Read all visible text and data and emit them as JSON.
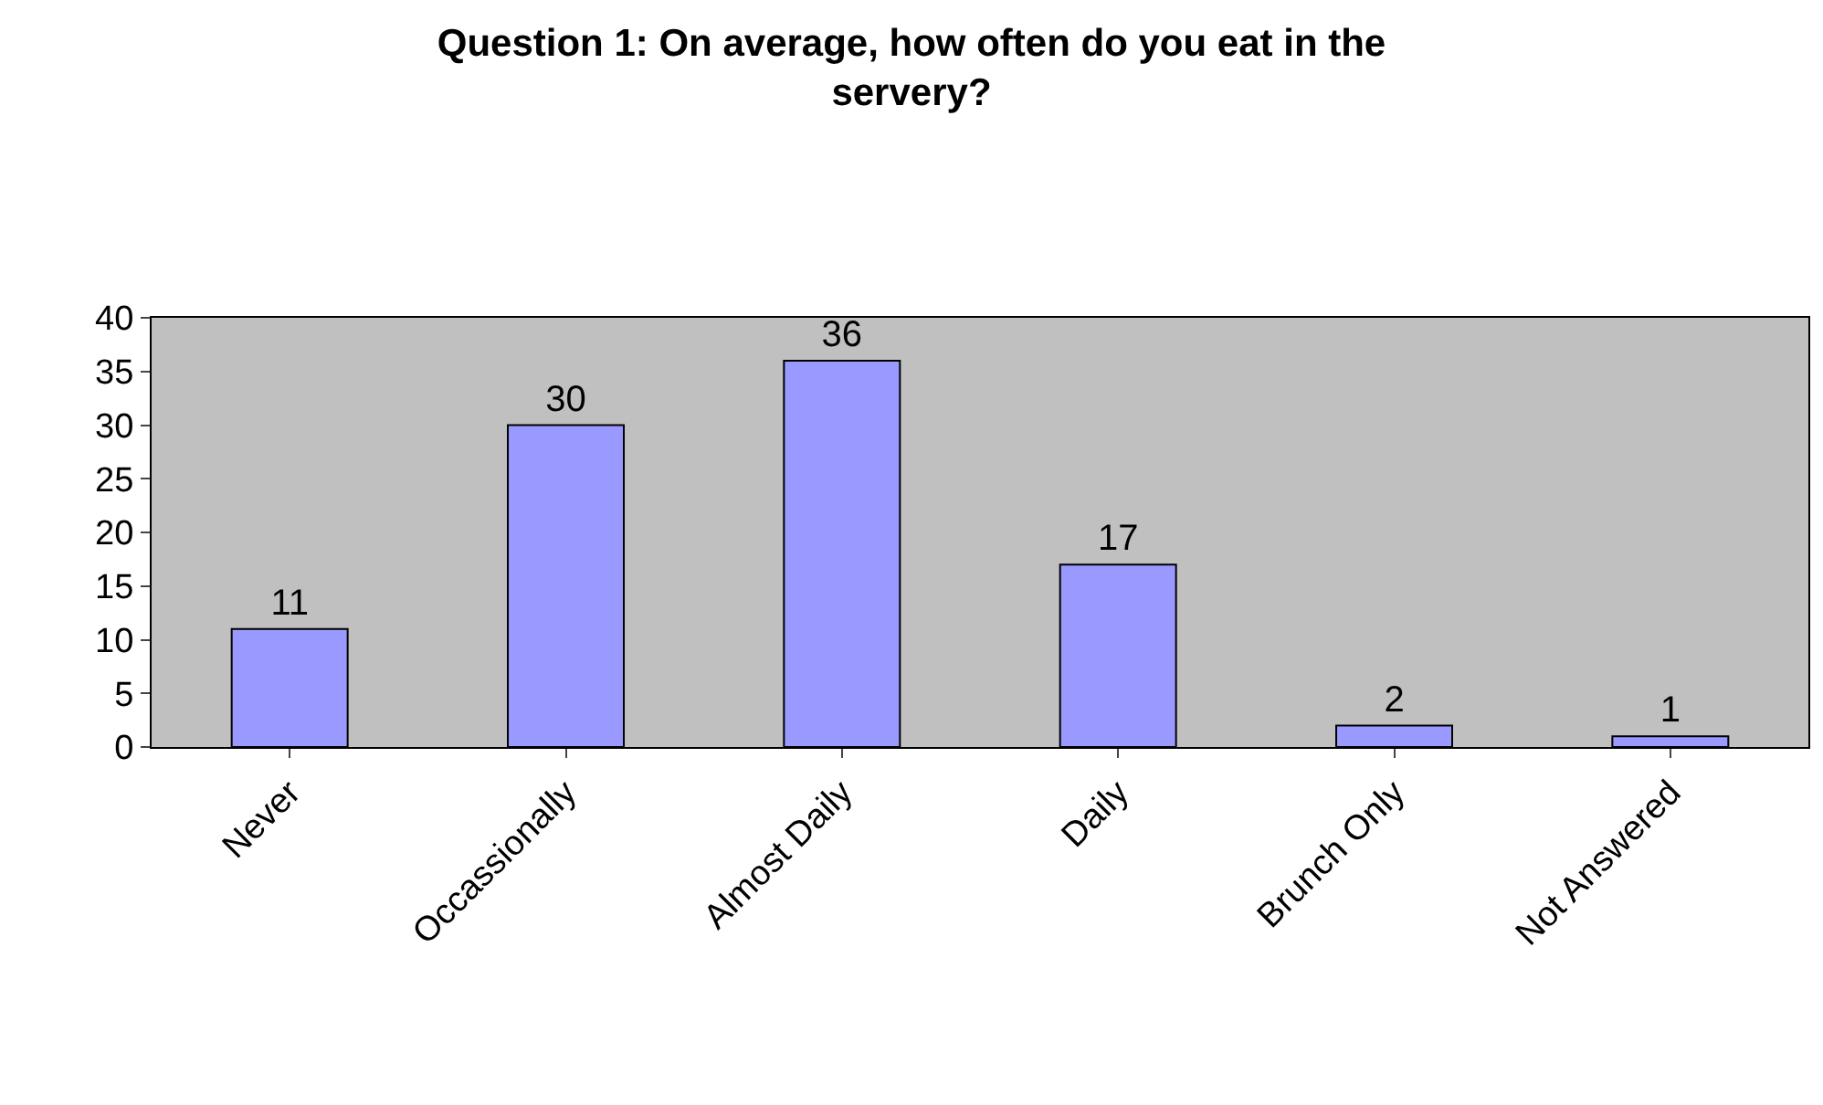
{
  "chart_data": {
    "type": "bar",
    "title": "Question 1: On average, how often do you eat in the servery?",
    "categories": [
      "Never",
      "Occassionally",
      "Almost Daily",
      "Daily",
      "Brunch Only",
      "Not Answered"
    ],
    "values": [
      11,
      30,
      36,
      17,
      2,
      1
    ],
    "color": "#9999ff",
    "ylim": [
      0,
      40
    ],
    "yticks": [
      0,
      5,
      10,
      15,
      20,
      25,
      30,
      35,
      40
    ],
    "grid": false,
    "data_labels": true,
    "legend": false
  }
}
